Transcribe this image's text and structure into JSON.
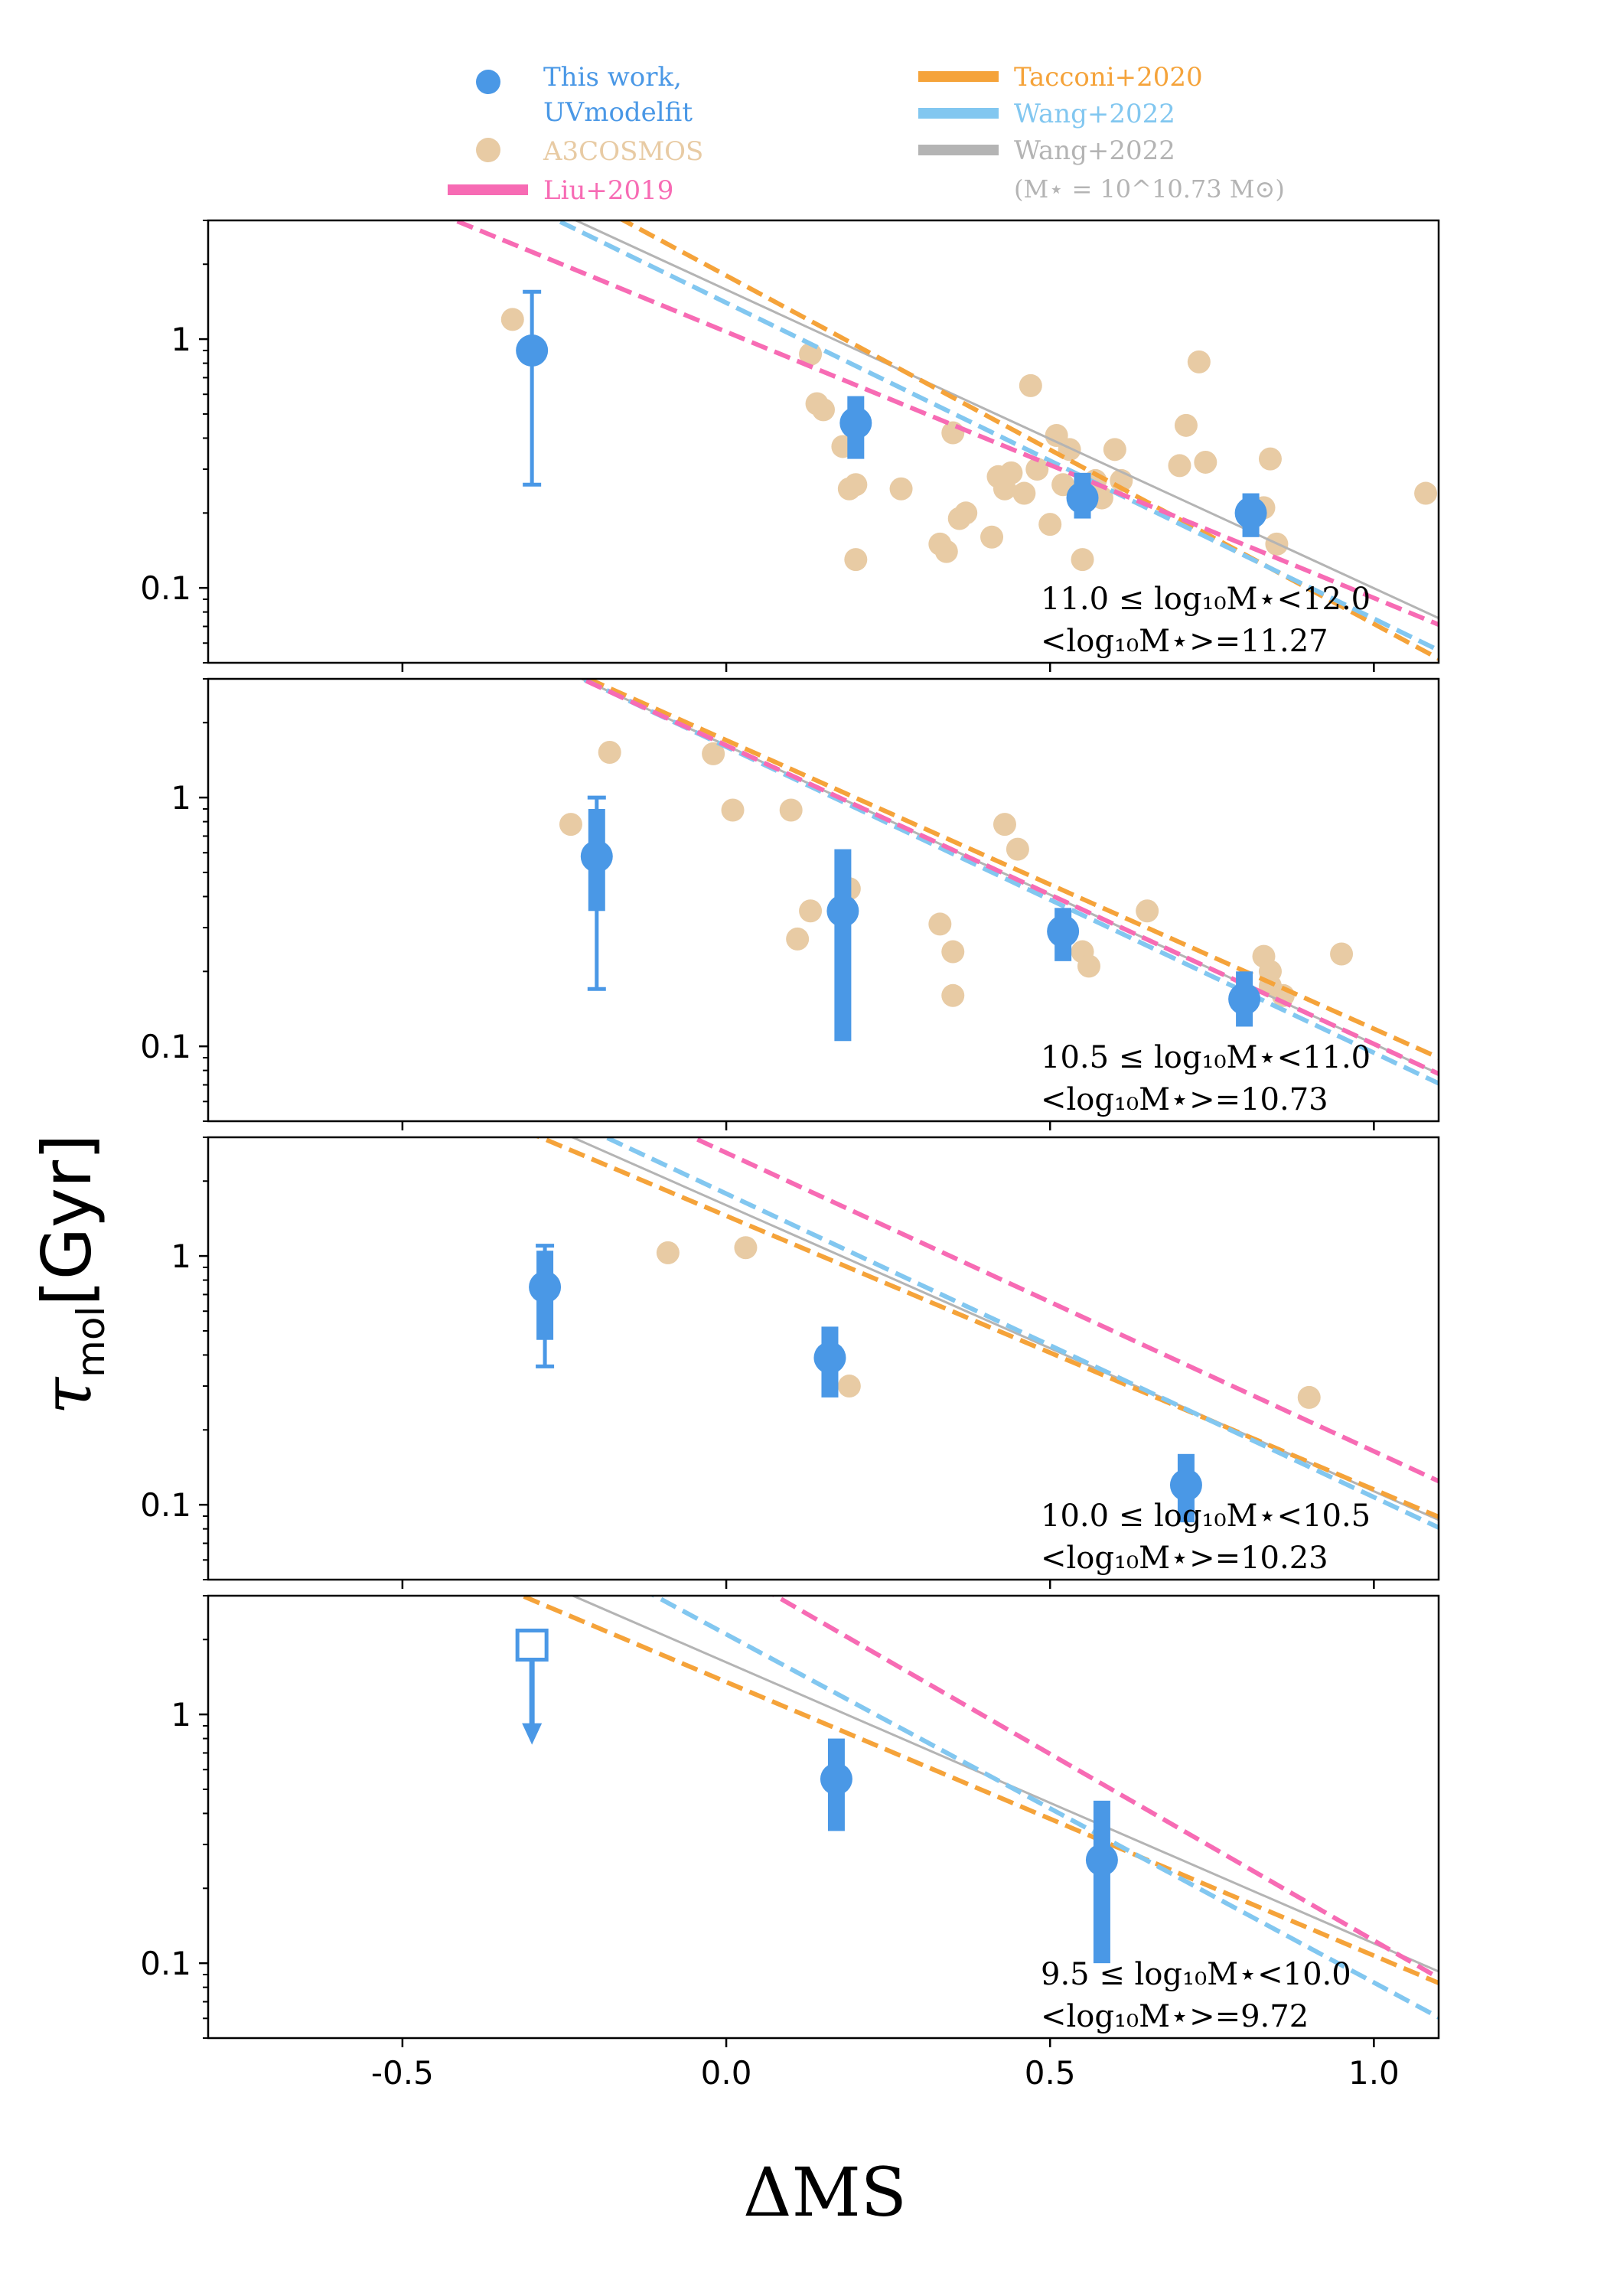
{
  "figure": {
    "ylabel_main": "τ",
    "ylabel_sub": "mol",
    "ylabel_unit": "[Gyr]",
    "xlabel": "ΔMS"
  },
  "legend": {
    "this_work": "This work,",
    "this_work_2": "UVmodelfit",
    "a3cosmos": "A3COSMOS",
    "liu": "Liu+2019",
    "tacconi": "Tacconi+2020",
    "wang_blue": "Wang+2022",
    "wang_gray": "Wang+2022",
    "wang_gray_note": "(M⋆ = 10^10.73 M⊙)"
  },
  "colors": {
    "this_work": "#4a98e6",
    "a3cosmos": "#e8cba4",
    "liu": "#f76bb4",
    "tacconi": "#f5a33a",
    "wang_blue": "#82c7f0",
    "wang_gray": "#b4b4b4"
  },
  "chart_data": [
    {
      "type": "scatter",
      "panel_label_1": "11.0 ≤ log₁₀M⋆<12.0",
      "panel_label_2": "<log₁₀M⋆>=11.27",
      "xlim": [
        -0.8,
        1.1
      ],
      "ylim": [
        0.05,
        3
      ],
      "yscale": "log",
      "this_work": [
        {
          "x": -0.3,
          "y": 0.9,
          "err_lo": 0.26,
          "err_hi": 1.55,
          "thin": true
        },
        {
          "x": 0.2,
          "y": 0.46,
          "err_lo": 0.33,
          "err_hi": 0.59
        },
        {
          "x": 0.55,
          "y": 0.23,
          "err_lo": 0.19,
          "err_hi": 0.29
        },
        {
          "x": 0.81,
          "y": 0.2,
          "err_lo": 0.16,
          "err_hi": 0.24
        }
      ],
      "a3cosmos": [
        [
          -0.33,
          1.2
        ],
        [
          0.13,
          0.87
        ],
        [
          0.14,
          0.55
        ],
        [
          0.15,
          0.52
        ],
        [
          0.18,
          0.37
        ],
        [
          0.19,
          0.25
        ],
        [
          0.2,
          0.13
        ],
        [
          0.2,
          0.26
        ],
        [
          0.27,
          0.25
        ],
        [
          0.33,
          0.15
        ],
        [
          0.34,
          0.14
        ],
        [
          0.35,
          0.42
        ],
        [
          0.36,
          0.19
        ],
        [
          0.37,
          0.2
        ],
        [
          0.41,
          0.16
        ],
        [
          0.42,
          0.28
        ],
        [
          0.43,
          0.25
        ],
        [
          0.44,
          0.29
        ],
        [
          0.46,
          0.24
        ],
        [
          0.47,
          0.65
        ],
        [
          0.48,
          0.3
        ],
        [
          0.5,
          0.18
        ],
        [
          0.51,
          0.41
        ],
        [
          0.52,
          0.26
        ],
        [
          0.53,
          0.36
        ],
        [
          0.55,
          0.13
        ],
        [
          0.57,
          0.27
        ],
        [
          0.58,
          0.23
        ],
        [
          0.6,
          0.36
        ],
        [
          0.61,
          0.27
        ],
        [
          0.7,
          0.31
        ],
        [
          0.71,
          0.45
        ],
        [
          0.73,
          0.81
        ],
        [
          0.74,
          0.32
        ],
        [
          0.83,
          0.21
        ],
        [
          0.84,
          0.33
        ],
        [
          0.85,
          0.15
        ],
        [
          1.08,
          0.24
        ]
      ],
      "lines": {
        "tacconi": [
          1.8,
          -1.4
        ],
        "wang_blue": [
          1.4,
          -1.27
        ],
        "liu": [
          1.07,
          -1.07
        ],
        "wang_gray": [
          1.58,
          -1.2
        ]
      }
    },
    {
      "type": "scatter",
      "panel_label_1": "10.5 ≤ log₁₀M⋆<11.0",
      "panel_label_2": "<log₁₀M⋆>=10.73",
      "xlim": [
        -0.8,
        1.1
      ],
      "ylim": [
        0.05,
        3
      ],
      "yscale": "log",
      "this_work": [
        {
          "x": -0.2,
          "y": 0.58,
          "err_lo": 0.17,
          "err_hi": 1.0,
          "thin": true,
          "bar_lo": 0.35,
          "bar_hi": 0.9
        },
        {
          "x": 0.18,
          "y": 0.35,
          "err_lo": 0.105,
          "err_hi": 0.62
        },
        {
          "x": 0.52,
          "y": 0.29,
          "err_lo": 0.22,
          "err_hi": 0.36
        },
        {
          "x": 0.8,
          "y": 0.155,
          "err_lo": 0.12,
          "err_hi": 0.2
        }
      ],
      "a3cosmos": [
        [
          -0.24,
          0.78
        ],
        [
          -0.18,
          1.52
        ],
        [
          -0.02,
          1.5
        ],
        [
          0.01,
          0.89
        ],
        [
          0.1,
          0.89
        ],
        [
          0.11,
          0.27
        ],
        [
          0.13,
          0.35
        ],
        [
          0.19,
          0.43
        ],
        [
          0.33,
          0.31
        ],
        [
          0.35,
          0.24
        ],
        [
          0.35,
          0.16
        ],
        [
          0.43,
          0.78
        ],
        [
          0.45,
          0.62
        ],
        [
          0.55,
          0.24
        ],
        [
          0.56,
          0.21
        ],
        [
          0.65,
          0.35
        ],
        [
          0.83,
          0.23
        ],
        [
          0.84,
          0.2
        ],
        [
          0.84,
          0.175
        ],
        [
          0.86,
          0.16
        ],
        [
          0.95,
          0.235
        ]
      ],
      "lines": {
        "tacconi": [
          1.7,
          -1.16
        ],
        "wang_blue": [
          1.6,
          -1.23
        ],
        "liu": [
          1.62,
          -1.2
        ],
        "wang_gray": [
          1.62,
          -1.2
        ]
      }
    },
    {
      "type": "scatter",
      "panel_label_1": "10.0 ≤ log₁₀M⋆<10.5",
      "panel_label_2": "<log₁₀M⋆>=10.23",
      "xlim": [
        -0.8,
        1.1
      ],
      "ylim": [
        0.05,
        3
      ],
      "yscale": "log",
      "this_work": [
        {
          "x": -0.28,
          "y": 0.75,
          "err_lo": 0.36,
          "err_hi": 1.1,
          "thin": true,
          "bar_lo": 0.46,
          "bar_hi": 1.05
        },
        {
          "x": 0.16,
          "y": 0.39,
          "err_lo": 0.27,
          "err_hi": 0.52
        },
        {
          "x": 0.71,
          "y": 0.12,
          "err_lo": 0.085,
          "err_hi": 0.16
        }
      ],
      "a3cosmos": [
        [
          -0.09,
          1.03
        ],
        [
          0.03,
          1.08
        ],
        [
          0.19,
          0.3
        ],
        [
          0.9,
          0.27
        ]
      ],
      "lines": {
        "tacconi": [
          1.45,
          -1.1
        ],
        "wang_blue": [
          1.78,
          -1.22
        ],
        "liu": [
          2.6,
          -1.2
        ],
        "wang_gray": [
          1.6,
          -1.15
        ]
      }
    },
    {
      "type": "scatter",
      "panel_label_1": "9.5 ≤ log₁₀M⋆<10.0",
      "panel_label_2": "<log₁₀M⋆>=9.72",
      "xlim": [
        -0.8,
        1.1
      ],
      "ylim": [
        0.05,
        3
      ],
      "yscale": "log",
      "this_work": [
        {
          "x": 0.17,
          "y": 0.55,
          "err_lo": 0.34,
          "err_hi": 0.8
        },
        {
          "x": 0.58,
          "y": 0.26,
          "err_lo": 0.1,
          "err_hi": 0.45
        }
      ],
      "upper_limit": {
        "x": -0.3,
        "y": 1.9,
        "arrow_to": 0.8
      },
      "a3cosmos": [],
      "lines": {
        "tacconi": [
          1.35,
          -1.1
        ],
        "wang_blue": [
          2.1,
          -1.4
        ],
        "liu": [
          3.9,
          -1.5
        ],
        "wang_gray": [
          1.62,
          -1.13
        ]
      }
    }
  ],
  "axes": {
    "x_ticks": [
      -0.5,
      0.0,
      0.5,
      1.0
    ],
    "x_tick_labels": [
      "-0.5",
      "0.0",
      "0.5",
      "1.0"
    ],
    "y_ticks": [
      0.1,
      1
    ],
    "y_tick_labels": [
      "0.1",
      "1"
    ]
  }
}
